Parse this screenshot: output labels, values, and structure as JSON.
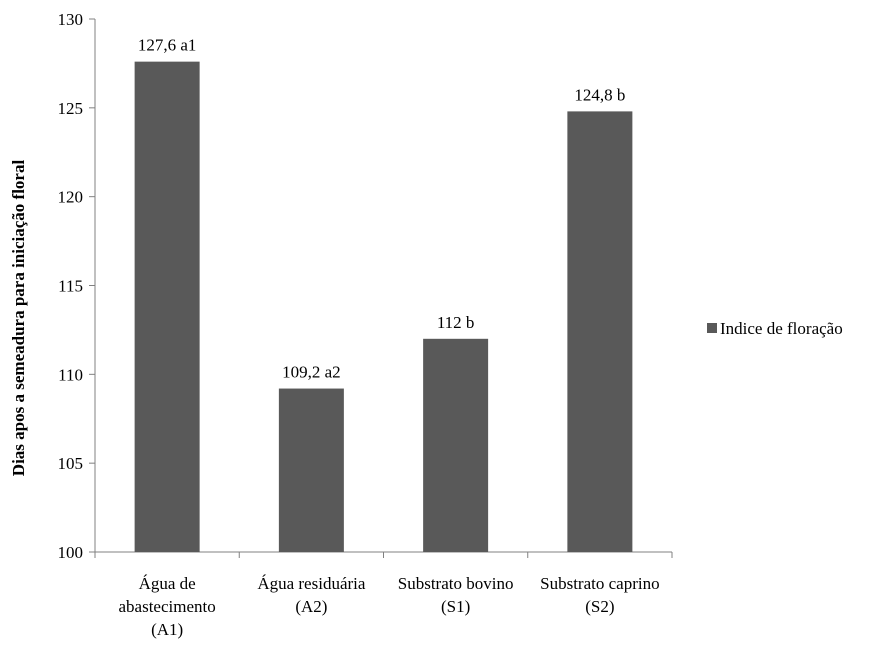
{
  "chart_data": {
    "type": "bar",
    "categories": [
      [
        "Água de",
        "abastecimento",
        "(A1)"
      ],
      [
        "Água residuária",
        "(A2)"
      ],
      [
        "Substrato bovino",
        "(S1)"
      ],
      [
        "Substrato caprino",
        "(S2)"
      ]
    ],
    "series": [
      {
        "name": "Indice de floração",
        "values": [
          127.6,
          109.2,
          112,
          124.8
        ],
        "labels": [
          "127,6 a1",
          "109,2 a2",
          "112 b",
          "124,8 b"
        ],
        "color": "#595959"
      }
    ],
    "ylabel": "Dias apos a semeadura para iniciação floral",
    "ylim": [
      100,
      130
    ],
    "yticks": [
      100,
      105,
      110,
      115,
      120,
      125,
      130
    ],
    "grid": false,
    "legend_position": "right"
  }
}
